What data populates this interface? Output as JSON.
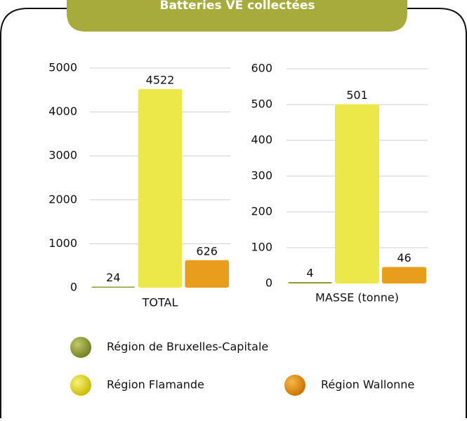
{
  "title": "Batteries VE collectées",
  "chart_data": [
    {
      "type": "bar",
      "categories": [
        "TOTAL"
      ],
      "series": [
        {
          "name": "Région de Bruxelles-Capitale",
          "color": "#8c9a2e",
          "values": [
            24
          ]
        },
        {
          "name": "Région Flamande",
          "color": "#ece84a",
          "values": [
            4522
          ]
        },
        {
          "name": "Région Wallonne",
          "color": "#e99d1c",
          "values": [
            626
          ]
        }
      ],
      "ylim": [
        0,
        5000
      ],
      "yticks": [
        0,
        1000,
        2000,
        3000,
        4000,
        5000
      ],
      "grid": true
    },
    {
      "type": "bar",
      "categories": [
        "MASSE (tonne)"
      ],
      "series": [
        {
          "name": "Région de Bruxelles-Capitale",
          "color": "#8c9a2e",
          "values": [
            4
          ]
        },
        {
          "name": "Région Flamande",
          "color": "#ece84a",
          "values": [
            501
          ]
        },
        {
          "name": "Région Wallonne",
          "color": "#e99d1c",
          "values": [
            46
          ]
        }
      ],
      "ylim": [
        0,
        600
      ],
      "yticks": [
        0,
        100,
        200,
        300,
        400,
        500,
        600
      ],
      "grid": true
    }
  ]
}
